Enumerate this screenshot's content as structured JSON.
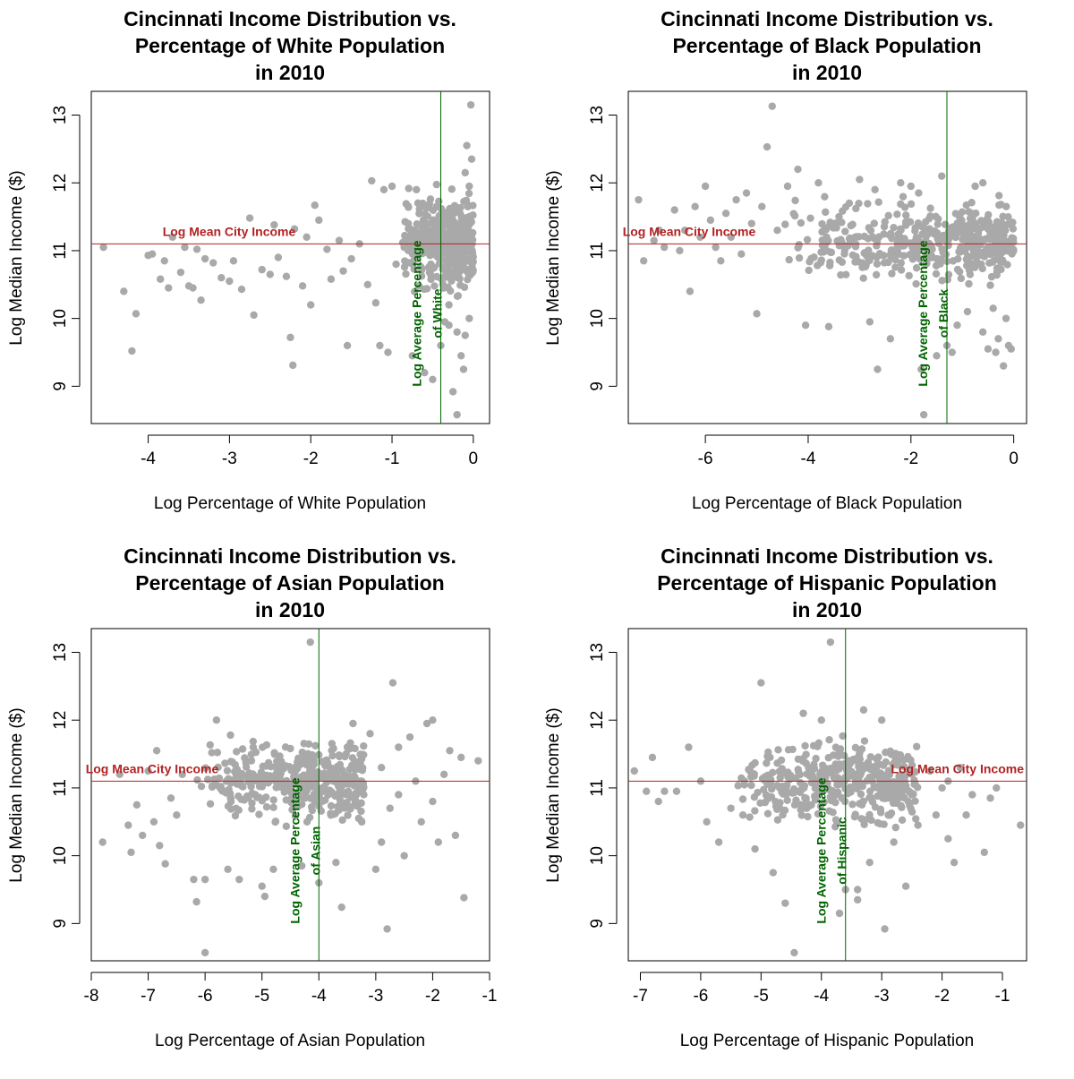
{
  "style": {
    "point_color": "#a9a9a9",
    "city_line_color": "#b22222",
    "avg_line_color": "#006400",
    "frame_color": "#000000"
  },
  "chart_data": [
    {
      "type": "scatter",
      "title": [
        "Cincinnati Income Distribution vs.",
        "Percentage of White Population",
        "in 2010"
      ],
      "xlabel": "Log Percentage of White Population",
      "ylabel": "Log Median Income ($)",
      "xlim": [
        -4.7,
        0.2
      ],
      "ylim": [
        8.45,
        13.35
      ],
      "xticks": [
        -4,
        -3,
        -2,
        -1,
        0
      ],
      "yticks": [
        9,
        10,
        11,
        12,
        13
      ],
      "hline": {
        "value": 11.1,
        "label": "Log Mean City Income",
        "label_pos": "left"
      },
      "vline": {
        "value": -0.4,
        "label": [
          "Log Average Percentage",
          "of White"
        ]
      },
      "cluster": {
        "xmin": -0.9,
        "xmax": 0.0,
        "ymin": 10.2,
        "ymax": 12.0,
        "count": 420,
        "seed": 11
      },
      "points": [
        [
          -4.55,
          11.05
        ],
        [
          -4.3,
          10.4
        ],
        [
          -4.2,
          9.52
        ],
        [
          -4.15,
          10.07
        ],
        [
          -4.0,
          10.93
        ],
        [
          -3.95,
          10.95
        ],
        [
          -3.85,
          10.58
        ],
        [
          -3.8,
          10.85
        ],
        [
          -3.75,
          10.45
        ],
        [
          -3.7,
          11.2
        ],
        [
          -3.6,
          10.68
        ],
        [
          -3.55,
          11.05
        ],
        [
          -3.5,
          10.48
        ],
        [
          -3.45,
          10.45
        ],
        [
          -3.4,
          11.02
        ],
        [
          -3.35,
          10.27
        ],
        [
          -3.3,
          10.88
        ],
        [
          -3.2,
          10.82
        ],
        [
          -3.1,
          10.6
        ],
        [
          -3.0,
          10.55
        ],
        [
          -2.95,
          10.85
        ],
        [
          -2.85,
          10.43
        ],
        [
          -2.75,
          11.48
        ],
        [
          -2.7,
          10.05
        ],
        [
          -2.6,
          10.72
        ],
        [
          -2.5,
          10.65
        ],
        [
          -2.45,
          11.38
        ],
        [
          -2.4,
          10.9
        ],
        [
          -2.3,
          10.62
        ],
        [
          -2.25,
          9.72
        ],
        [
          -2.22,
          9.31
        ],
        [
          -2.2,
          11.32
        ],
        [
          -2.1,
          10.48
        ],
        [
          -2.05,
          11.2
        ],
        [
          -2.0,
          10.2
        ],
        [
          -1.95,
          11.67
        ],
        [
          -1.9,
          11.45
        ],
        [
          -1.8,
          11.02
        ],
        [
          -1.75,
          10.58
        ],
        [
          -1.65,
          11.15
        ],
        [
          -1.6,
          10.7
        ],
        [
          -1.55,
          9.6
        ],
        [
          -1.5,
          10.88
        ],
        [
          -1.4,
          11.1
        ],
        [
          -1.3,
          10.5
        ],
        [
          -1.25,
          12.03
        ],
        [
          -1.2,
          10.23
        ],
        [
          -1.15,
          9.6
        ],
        [
          -1.1,
          11.9
        ],
        [
          -1.05,
          9.5
        ],
        [
          -1.0,
          11.95
        ],
        [
          -0.95,
          10.8
        ],
        [
          -0.85,
          11.05
        ],
        [
          -0.8,
          11.4
        ],
        [
          -0.75,
          9.45
        ],
        [
          -0.7,
          11.9
        ],
        [
          -0.6,
          9.2
        ],
        [
          -0.5,
          9.1
        ],
        [
          -0.4,
          9.6
        ],
        [
          -0.35,
          9.95
        ],
        [
          -0.3,
          10.2
        ],
        [
          -0.25,
          8.92
        ],
        [
          -0.2,
          8.58
        ],
        [
          -0.15,
          9.45
        ],
        [
          -0.12,
          9.25
        ],
        [
          -0.1,
          12.15
        ],
        [
          -0.08,
          12.55
        ],
        [
          -0.05,
          11.95
        ],
        [
          -0.03,
          13.15
        ],
        [
          -0.02,
          12.35
        ],
        [
          -0.2,
          9.8
        ],
        [
          -0.1,
          9.75
        ],
        [
          -0.05,
          10.0
        ],
        [
          -0.3,
          9.9
        ]
      ]
    },
    {
      "type": "scatter",
      "title": [
        "Cincinnati Income Distribution vs.",
        "Percentage of Black Population",
        "in 2010"
      ],
      "xlabel": "Log Percentage of Black Population",
      "ylabel": "Log Median Income ($)",
      "xlim": [
        -7.5,
        0.25
      ],
      "ylim": [
        8.45,
        13.35
      ],
      "xticks": [
        -6,
        -4,
        -2,
        0
      ],
      "yticks": [
        9,
        10,
        11,
        12,
        13
      ],
      "hline": {
        "value": 11.1,
        "label": "Log Mean City Income",
        "label_pos": "left"
      },
      "vline": {
        "value": -1.3,
        "label": [
          "Log Average Percentage",
          "of Black"
        ]
      },
      "cluster": {
        "xmin": -4.5,
        "xmax": 0.0,
        "ymin": 10.4,
        "ymax": 11.9,
        "count": 450,
        "seed": 23
      },
      "points": [
        [
          -7.3,
          11.75
        ],
        [
          -7.2,
          10.85
        ],
        [
          -7.0,
          11.15
        ],
        [
          -6.9,
          11.3
        ],
        [
          -6.8,
          11.05
        ],
        [
          -6.6,
          11.6
        ],
        [
          -6.5,
          11.0
        ],
        [
          -6.4,
          11.3
        ],
        [
          -6.3,
          10.4
        ],
        [
          -6.2,
          11.65
        ],
        [
          -6.1,
          11.2
        ],
        [
          -6.0,
          11.95
        ],
        [
          -5.9,
          11.45
        ],
        [
          -5.8,
          11.05
        ],
        [
          -5.7,
          10.85
        ],
        [
          -5.6,
          11.55
        ],
        [
          -5.5,
          11.2
        ],
        [
          -5.4,
          11.75
        ],
        [
          -5.3,
          10.95
        ],
        [
          -5.2,
          11.85
        ],
        [
          -5.1,
          11.4
        ],
        [
          -5.0,
          10.07
        ],
        [
          -4.9,
          11.65
        ],
        [
          -4.8,
          12.53
        ],
        [
          -4.7,
          13.13
        ],
        [
          -4.6,
          11.3
        ],
        [
          -4.4,
          11.95
        ],
        [
          -4.2,
          12.2
        ],
        [
          -4.05,
          9.9
        ],
        [
          -3.8,
          12.0
        ],
        [
          -3.6,
          9.88
        ],
        [
          -3.4,
          11.5
        ],
        [
          -3.2,
          11.7
        ],
        [
          -3.0,
          12.05
        ],
        [
          -2.8,
          9.95
        ],
        [
          -2.7,
          11.9
        ],
        [
          -2.65,
          9.25
        ],
        [
          -2.4,
          9.7
        ],
        [
          -2.2,
          12.0
        ],
        [
          -2.0,
          11.95
        ],
        [
          -1.85,
          11.85
        ],
        [
          -1.8,
          9.25
        ],
        [
          -1.75,
          8.58
        ],
        [
          -1.5,
          9.45
        ],
        [
          -1.3,
          9.6
        ],
        [
          -1.2,
          9.5
        ],
        [
          -1.1,
          9.9
        ],
        [
          -0.9,
          10.1
        ],
        [
          -0.75,
          11.95
        ],
        [
          -0.6,
          12.0
        ],
        [
          -0.5,
          9.55
        ],
        [
          -0.35,
          9.5
        ],
        [
          -0.3,
          9.7
        ],
        [
          -0.2,
          9.3
        ],
        [
          -0.1,
          9.6
        ],
        [
          -0.05,
          9.55
        ],
        [
          -0.15,
          10.0
        ],
        [
          -0.4,
          10.15
        ],
        [
          -0.6,
          9.8
        ],
        [
          -1.4,
          12.1
        ]
      ]
    },
    {
      "type": "scatter",
      "title": [
        "Cincinnati Income Distribution vs.",
        "Percentage of Asian Population",
        "in 2010"
      ],
      "xlabel": "Log Percentage of Asian Population",
      "ylabel": "Log Median Income ($)",
      "xlim": [
        -8.0,
        -1.0
      ],
      "ylim": [
        8.45,
        13.35
      ],
      "xticks": [
        -8,
        -7,
        -6,
        -5,
        -4,
        -3,
        -2,
        -1
      ],
      "yticks": [
        9,
        10,
        11,
        12,
        13
      ],
      "hline": {
        "value": 11.1,
        "label": "Log Mean City Income",
        "label_pos": "left"
      },
      "vline": {
        "value": -4.0,
        "label": [
          "Log Average Percentage",
          "of Asian"
        ]
      },
      "cluster": {
        "xmin": -6.2,
        "xmax": -3.2,
        "ymin": 10.3,
        "ymax": 11.9,
        "count": 380,
        "seed": 37
      },
      "points": [
        [
          -7.8,
          10.2
        ],
        [
          -7.5,
          11.2
        ],
        [
          -7.35,
          10.45
        ],
        [
          -7.3,
          10.05
        ],
        [
          -7.2,
          10.75
        ],
        [
          -7.1,
          10.3
        ],
        [
          -7.0,
          11.25
        ],
        [
          -6.9,
          10.5
        ],
        [
          -6.85,
          11.55
        ],
        [
          -6.8,
          10.15
        ],
        [
          -6.7,
          9.88
        ],
        [
          -6.6,
          10.85
        ],
        [
          -6.5,
          10.6
        ],
        [
          -6.4,
          11.2
        ],
        [
          -6.2,
          9.65
        ],
        [
          -6.15,
          9.32
        ],
        [
          -6.0,
          9.65
        ],
        [
          -6.0,
          8.57
        ],
        [
          -5.8,
          12.0
        ],
        [
          -5.6,
          9.8
        ],
        [
          -5.4,
          9.65
        ],
        [
          -5.0,
          9.55
        ],
        [
          -4.95,
          9.4
        ],
        [
          -4.8,
          9.8
        ],
        [
          -4.3,
          9.85
        ],
        [
          -4.15,
          13.15
        ],
        [
          -4.0,
          9.6
        ],
        [
          -3.7,
          9.9
        ],
        [
          -3.6,
          9.24
        ],
        [
          -3.4,
          11.95
        ],
        [
          -3.3,
          10.55
        ],
        [
          -3.1,
          11.8
        ],
        [
          -3.0,
          9.8
        ],
        [
          -2.9,
          10.2
        ],
        [
          -2.8,
          8.92
        ],
        [
          -2.75,
          10.7
        ],
        [
          -2.7,
          12.55
        ],
        [
          -2.6,
          11.6
        ],
        [
          -2.5,
          10.0
        ],
        [
          -2.4,
          11.75
        ],
        [
          -2.3,
          11.1
        ],
        [
          -2.2,
          10.5
        ],
        [
          -2.1,
          11.95
        ],
        [
          -2.0,
          10.8
        ],
        [
          -1.9,
          10.2
        ],
        [
          -1.8,
          11.2
        ],
        [
          -1.7,
          11.55
        ],
        [
          -1.6,
          10.3
        ],
        [
          -1.5,
          11.45
        ],
        [
          -1.45,
          9.38
        ],
        [
          -1.2,
          11.4
        ],
        [
          -2.0,
          12.0
        ],
        [
          -3.5,
          11.6
        ],
        [
          -2.6,
          10.9
        ],
        [
          -2.9,
          11.3
        ]
      ]
    },
    {
      "type": "scatter",
      "title": [
        "Cincinnati Income Distribution vs.",
        "Percentage of Hispanic Population",
        "in 2010"
      ],
      "xlabel": "Log Percentage of Hispanic Population",
      "ylabel": "Log Median Income ($)",
      "xlim": [
        -7.2,
        -0.6
      ],
      "ylim": [
        8.45,
        13.35
      ],
      "xticks": [
        -7,
        -6,
        -5,
        -4,
        -3,
        -2,
        -1
      ],
      "yticks": [
        9,
        10,
        11,
        12,
        13
      ],
      "hline": {
        "value": 11.1,
        "label": "Log Mean City Income",
        "label_pos": "right"
      },
      "vline": {
        "value": -3.6,
        "label": [
          "Log Average Percentage",
          "of Hispanic"
        ]
      },
      "cluster": {
        "xmin": -5.6,
        "xmax": -2.4,
        "ymin": 10.3,
        "ymax": 11.9,
        "count": 400,
        "seed": 53
      },
      "points": [
        [
          -7.1,
          11.25
        ],
        [
          -6.9,
          10.95
        ],
        [
          -6.8,
          11.45
        ],
        [
          -6.7,
          10.8
        ],
        [
          -6.6,
          10.95
        ],
        [
          -6.4,
          10.95
        ],
        [
          -6.2,
          11.6
        ],
        [
          -6.0,
          11.1
        ],
        [
          -5.9,
          10.5
        ],
        [
          -5.7,
          10.2
        ],
        [
          -5.5,
          10.7
        ],
        [
          -5.3,
          10.6
        ],
        [
          -5.1,
          10.1
        ],
        [
          -5.0,
          12.55
        ],
        [
          -4.8,
          9.75
        ],
        [
          -4.6,
          9.3
        ],
        [
          -4.45,
          8.57
        ],
        [
          -4.3,
          12.1
        ],
        [
          -4.0,
          12.0
        ],
        [
          -3.85,
          13.15
        ],
        [
          -3.6,
          9.5
        ],
        [
          -3.4,
          9.5
        ],
        [
          -3.3,
          12.15
        ],
        [
          -3.2,
          9.9
        ],
        [
          -3.0,
          12.0
        ],
        [
          -2.95,
          8.92
        ],
        [
          -2.8,
          10.2
        ],
        [
          -2.6,
          9.55
        ],
        [
          -2.5,
          10.9
        ],
        [
          -2.4,
          10.45
        ],
        [
          -2.2,
          11.25
        ],
        [
          -2.1,
          10.6
        ],
        [
          -2.0,
          11.0
        ],
        [
          -1.9,
          10.25
        ],
        [
          -1.8,
          9.9
        ],
        [
          -1.7,
          11.3
        ],
        [
          -1.6,
          10.6
        ],
        [
          -1.5,
          10.9
        ],
        [
          -1.3,
          10.05
        ],
        [
          -1.2,
          10.85
        ],
        [
          -0.7,
          10.45
        ],
        [
          -1.9,
          11.1
        ],
        [
          -1.1,
          11.0
        ],
        [
          -3.4,
          9.35
        ],
        [
          -3.7,
          9.15
        ]
      ]
    }
  ]
}
